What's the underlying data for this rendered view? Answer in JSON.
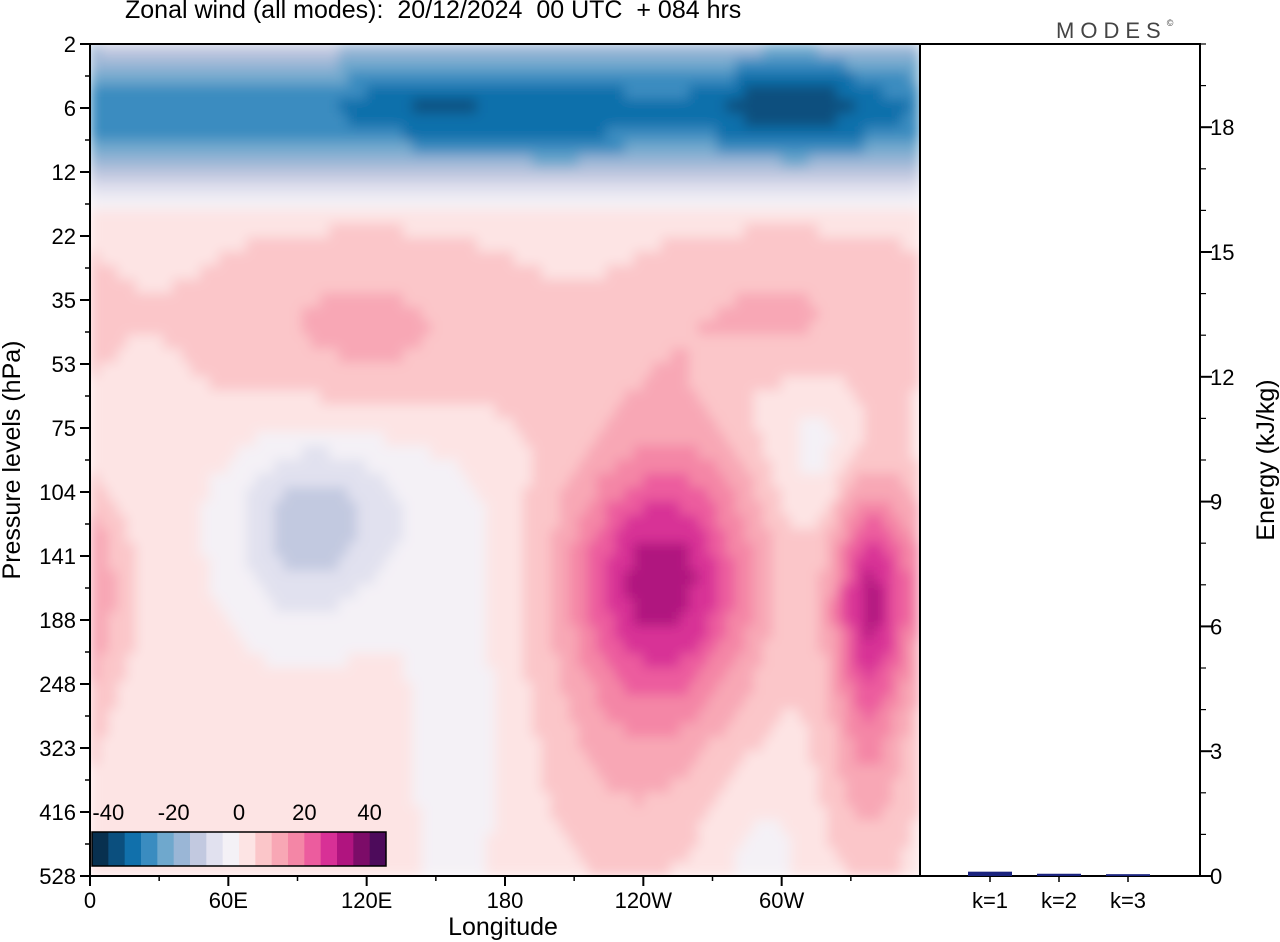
{
  "title": "Zonal wind (all modes):  20/12/2024  00 UTC  + 084 hrs",
  "logo": "MODES",
  "logo_mark": "©",
  "colors": {
    "palette": [
      "#08304f",
      "#0b4f7e",
      "#1170ab",
      "#3a8cc0",
      "#6fa8cd",
      "#9ab6d6",
      "#c2c9e0",
      "#e1e1ef",
      "#f4f1f6",
      "#fde4e4",
      "#fbc6c9",
      "#f8a7b5",
      "#f486a6",
      "#ec5c9e",
      "#d83096",
      "#b0147f",
      "#7c0c68",
      "#4d0b5b"
    ],
    "bar": "#1a237e"
  },
  "chart_data": [
    {
      "type": "heatmap",
      "name": "Zonal wind longitude-pressure section",
      "xlabel": "Longitude",
      "ylabel": "Pressure levels (hPa)",
      "x_ticks": [
        "0",
        "60E",
        "120E",
        "180",
        "120W",
        "60W"
      ],
      "x_range_deg": [
        0,
        360
      ],
      "y_ticks": [
        "2",
        "6",
        "12",
        "22",
        "35",
        "53",
        "75",
        "104",
        "141",
        "188",
        "248",
        "323",
        "416",
        "528"
      ],
      "y_scale": "log-like, top to bottom",
      "colorbar": {
        "ticks": [
          "-40",
          "-20",
          "0",
          "20",
          "40"
        ],
        "range": [
          -45,
          45
        ],
        "step": 5,
        "placement": "bottom-left inside plot"
      },
      "features": [
        {
          "desc": "easterly jet",
          "lon": 310,
          "p": 5,
          "value": -42
        },
        {
          "desc": "easterly",
          "lon": 150,
          "p": 5,
          "value": -34
        },
        {
          "desc": "easterly",
          "lon": 200,
          "p": 5,
          "value": -32
        },
        {
          "desc": "easterly",
          "lon": 250,
          "p": 5,
          "value": -30
        },
        {
          "desc": "easterly band",
          "lon": "all",
          "p": 6,
          "value": -28
        },
        {
          "desc": "westerly jet",
          "lon": 250,
          "p": 141,
          "value": 30
        },
        {
          "desc": "westerly jet",
          "lon": 338,
          "p": 145,
          "value": 28
        },
        {
          "desc": "weak westerly",
          "lon": 5,
          "p": 141,
          "value": 10
        },
        {
          "desc": "weak easterly",
          "lon": 90,
          "p": 110,
          "value": -12
        },
        {
          "desc": "weak easterly",
          "lon": 320,
          "p": 75,
          "value": -10
        },
        {
          "desc": "weak westerly",
          "lon": 120,
          "p": 40,
          "value": 6
        }
      ]
    },
    {
      "type": "bar",
      "name": "Energy by zonal wavenumber",
      "ylabel": "Energy (kJ/kg)",
      "categories": [
        "k=1",
        "k=2",
        "k=3"
      ],
      "values": [
        0.08,
        0.03,
        0.02
      ],
      "ylim": [
        0,
        20
      ],
      "y_ticks": [
        "0",
        "3",
        "6",
        "9",
        "12",
        "15",
        "18"
      ]
    }
  ]
}
